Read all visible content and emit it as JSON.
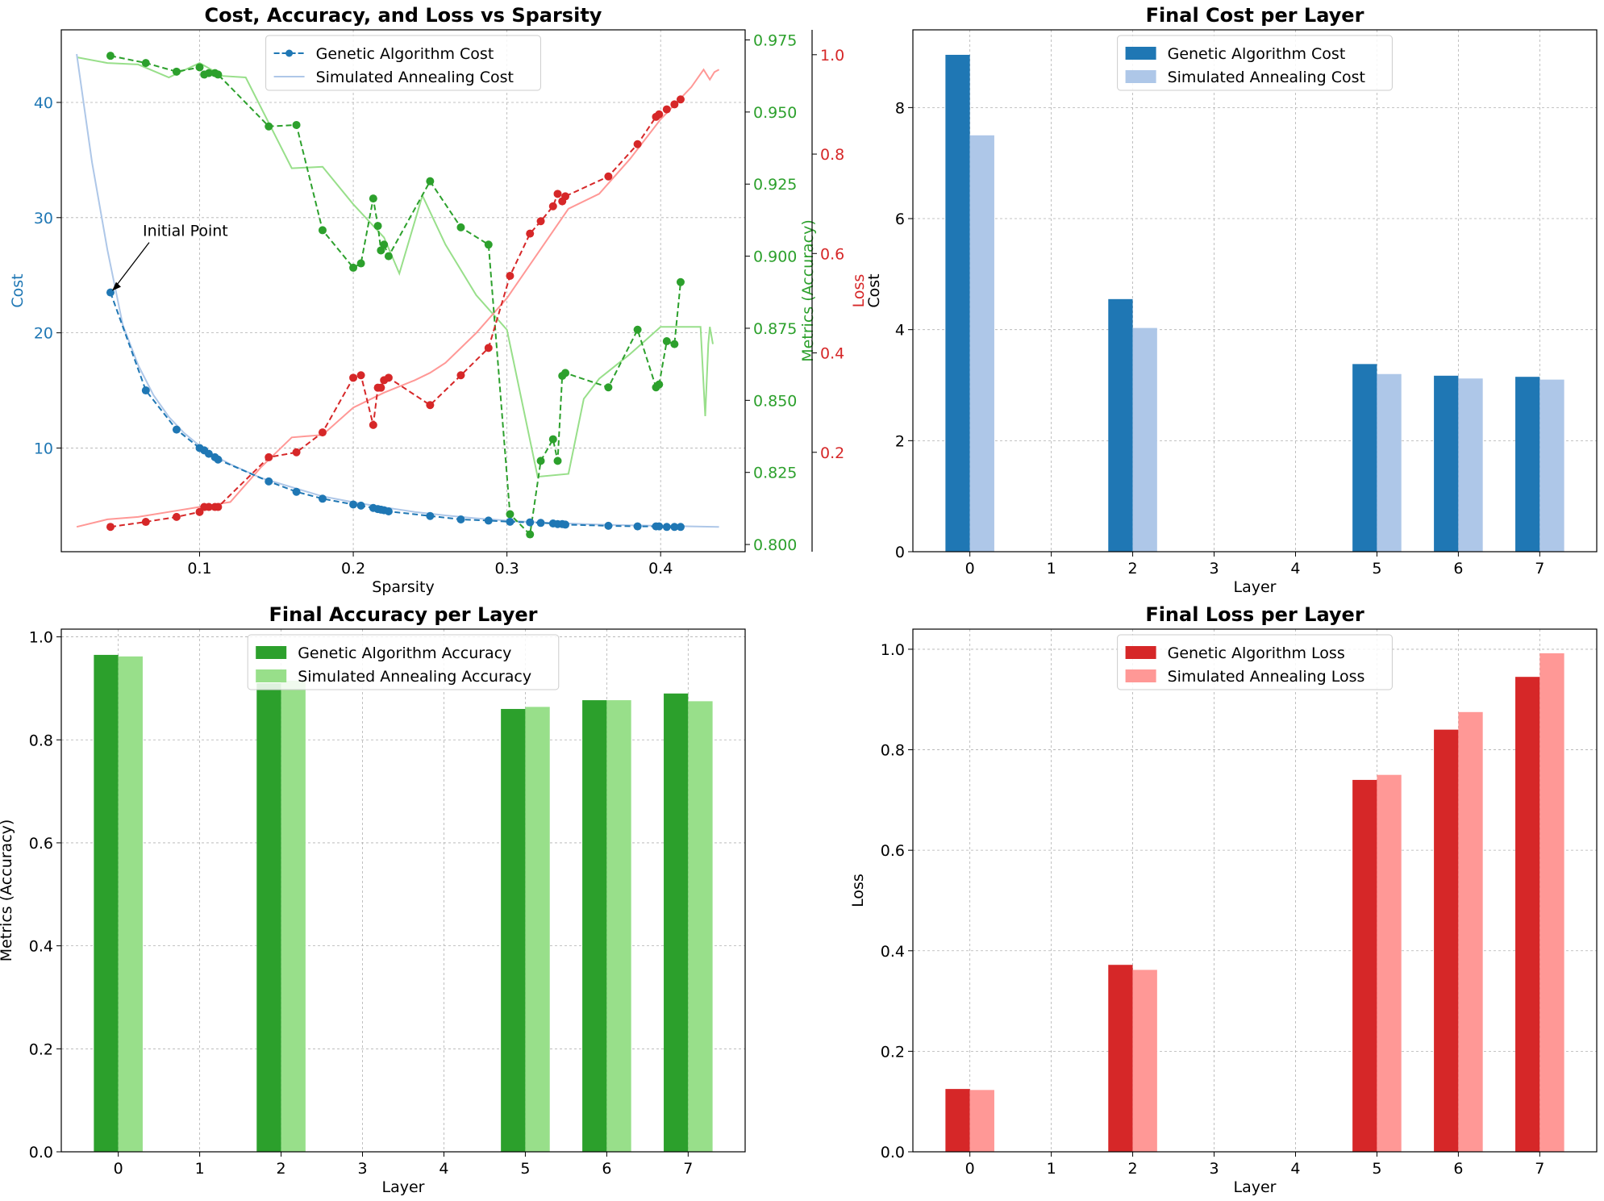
{
  "colors": {
    "ga_cost": "#1f77b4",
    "sa_cost": "#aec7e8",
    "ga_acc": "#2ca02c",
    "sa_acc": "#98df8a",
    "ga_loss": "#d62728",
    "sa_loss": "#ff9896",
    "grid": "#b0b0b0",
    "axis": "#000000"
  },
  "chart_data": [
    {
      "id": "line",
      "type": "line",
      "title": "Cost, Accuracy, and Loss vs Sparsity",
      "xlabel": "Sparsity",
      "xlim": [
        0.01,
        0.455
      ],
      "xticks": [
        0.1,
        0.2,
        0.3,
        0.4
      ],
      "grid": true,
      "legend_position": "top-center",
      "annotation": {
        "text": "Initial Point",
        "x": 0.042,
        "y": 23.5
      },
      "axes": {
        "cost": {
          "label": "Cost",
          "side": "left",
          "ylim": [
            1.0,
            46.3
          ],
          "ticks": [
            10,
            20,
            30,
            40
          ]
        },
        "acc": {
          "label": "Metrics (Accuracy)",
          "side": "right",
          "ylim": [
            0.7975,
            0.9785
          ],
          "ticks": [
            0.8,
            0.825,
            0.85,
            0.875,
            0.9,
            0.925,
            0.95,
            0.975
          ]
        },
        "loss": {
          "label": "Loss",
          "side": "right-offset",
          "ylim": [
            0.0,
            1.05
          ],
          "ticks": [
            0.2,
            0.4,
            0.6,
            0.8,
            1.0
          ]
        }
      },
      "series": [
        {
          "name": "Genetic Algorithm Cost",
          "axis": "cost",
          "style": "dashed-markers",
          "color_key": "ga_cost",
          "in_legend": true,
          "x": [
            0.042,
            0.065,
            0.085,
            0.1,
            0.103,
            0.106,
            0.11,
            0.112,
            0.145,
            0.163,
            0.18,
            0.2,
            0.205,
            0.213,
            0.216,
            0.218,
            0.22,
            0.223,
            0.25,
            0.27,
            0.288,
            0.302,
            0.315,
            0.322,
            0.33,
            0.333,
            0.336,
            0.338,
            0.366,
            0.385,
            0.397,
            0.399,
            0.404,
            0.409,
            0.413
          ],
          "y": [
            23.5,
            15.0,
            11.6,
            10.0,
            9.8,
            9.5,
            9.2,
            9.0,
            7.1,
            6.2,
            5.6,
            5.1,
            5.0,
            4.8,
            4.7,
            4.65,
            4.6,
            4.5,
            4.1,
            3.8,
            3.7,
            3.6,
            3.55,
            3.5,
            3.45,
            3.4,
            3.4,
            3.35,
            3.25,
            3.2,
            3.2,
            3.2,
            3.15,
            3.15,
            3.15
          ]
        },
        {
          "name": "Simulated Annealing Cost",
          "axis": "cost",
          "style": "solid",
          "color_key": "sa_cost",
          "in_legend": true,
          "x": [
            0.02,
            0.03,
            0.04,
            0.05,
            0.06,
            0.07,
            0.08,
            0.09,
            0.1,
            0.11,
            0.12,
            0.14,
            0.16,
            0.18,
            0.2,
            0.22,
            0.24,
            0.26,
            0.28,
            0.3,
            0.32,
            0.34,
            0.36,
            0.38,
            0.4,
            0.42,
            0.438
          ],
          "y": [
            44.2,
            34.8,
            27.2,
            20.7,
            17.2,
            14.6,
            12.7,
            11.3,
            10.2,
            9.3,
            8.6,
            7.4,
            6.6,
            5.8,
            5.3,
            4.85,
            4.45,
            4.15,
            3.9,
            3.7,
            3.55,
            3.45,
            3.35,
            3.3,
            3.25,
            3.2,
            3.15
          ]
        },
        {
          "name": "Genetic Algorithm Accuracy",
          "axis": "acc",
          "style": "dashed-markers",
          "color_key": "ga_acc",
          "in_legend": false,
          "x": [
            0.042,
            0.065,
            0.085,
            0.1,
            0.103,
            0.106,
            0.11,
            0.112,
            0.145,
            0.163,
            0.18,
            0.2,
            0.205,
            0.213,
            0.216,
            0.218,
            0.22,
            0.223,
            0.25,
            0.27,
            0.288,
            0.302,
            0.315,
            0.322,
            0.33,
            0.333,
            0.336,
            0.338,
            0.366,
            0.385,
            0.397,
            0.399,
            0.404,
            0.409,
            0.413
          ],
          "y": [
            0.9695,
            0.967,
            0.964,
            0.9655,
            0.963,
            0.9635,
            0.9635,
            0.963,
            0.945,
            0.9455,
            0.909,
            0.896,
            0.8975,
            0.92,
            0.9105,
            0.902,
            0.904,
            0.9,
            0.926,
            0.91,
            0.904,
            0.8105,
            0.8035,
            0.829,
            0.8365,
            0.829,
            0.8585,
            0.8595,
            0.8545,
            0.8745,
            0.8545,
            0.8555,
            0.8705,
            0.8695,
            0.891
          ]
        },
        {
          "name": "Simulated Annealing Accuracy",
          "axis": "acc",
          "style": "solid",
          "color_key": "sa_acc",
          "in_legend": false,
          "x": [
            0.02,
            0.04,
            0.06,
            0.08,
            0.09,
            0.1,
            0.115,
            0.13,
            0.16,
            0.18,
            0.2,
            0.22,
            0.23,
            0.245,
            0.26,
            0.28,
            0.3,
            0.32,
            0.34,
            0.35,
            0.36,
            0.38,
            0.4,
            0.42,
            0.426,
            0.429,
            0.431,
            0.432,
            0.434
          ],
          "y": [
            0.969,
            0.967,
            0.9665,
            0.962,
            0.9645,
            0.967,
            0.9625,
            0.962,
            0.9305,
            0.931,
            0.918,
            0.9065,
            0.894,
            0.921,
            0.904,
            0.8865,
            0.8745,
            0.8235,
            0.8245,
            0.8505,
            0.8575,
            0.866,
            0.8755,
            0.8755,
            0.8755,
            0.8445,
            0.8695,
            0.8755,
            0.8695
          ]
        },
        {
          "name": "Genetic Algorithm Loss",
          "axis": "loss",
          "style": "dashed-markers",
          "color_key": "ga_loss",
          "in_legend": false,
          "x": [
            0.042,
            0.065,
            0.085,
            0.1,
            0.103,
            0.106,
            0.11,
            0.112,
            0.145,
            0.163,
            0.18,
            0.2,
            0.205,
            0.213,
            0.216,
            0.218,
            0.22,
            0.223,
            0.25,
            0.27,
            0.288,
            0.302,
            0.315,
            0.322,
            0.33,
            0.333,
            0.336,
            0.338,
            0.366,
            0.385,
            0.397,
            0.399,
            0.404,
            0.409,
            0.413
          ],
          "y": [
            0.05,
            0.06,
            0.07,
            0.08,
            0.09,
            0.09,
            0.09,
            0.09,
            0.19,
            0.2,
            0.24,
            0.35,
            0.355,
            0.255,
            0.33,
            0.33,
            0.345,
            0.35,
            0.295,
            0.355,
            0.41,
            0.555,
            0.64,
            0.665,
            0.695,
            0.72,
            0.705,
            0.715,
            0.755,
            0.82,
            0.875,
            0.88,
            0.89,
            0.9,
            0.91
          ]
        },
        {
          "name": "Simulated Annealing Loss",
          "axis": "loss",
          "style": "solid",
          "color_key": "sa_loss",
          "in_legend": false,
          "x": [
            0.02,
            0.04,
            0.06,
            0.08,
            0.1,
            0.12,
            0.14,
            0.16,
            0.18,
            0.2,
            0.22,
            0.24,
            0.25,
            0.26,
            0.28,
            0.3,
            0.32,
            0.34,
            0.36,
            0.38,
            0.4,
            0.42,
            0.428,
            0.432,
            0.435,
            0.438
          ],
          "y": [
            0.05,
            0.065,
            0.07,
            0.08,
            0.09,
            0.1,
            0.17,
            0.23,
            0.235,
            0.29,
            0.32,
            0.345,
            0.36,
            0.38,
            0.44,
            0.51,
            0.6,
            0.69,
            0.72,
            0.79,
            0.87,
            0.935,
            0.97,
            0.95,
            0.965,
            0.97
          ]
        }
      ]
    },
    {
      "id": "cost",
      "type": "bar",
      "title": "Final Cost per Layer",
      "xlabel": "Layer",
      "ylabel": "Cost",
      "categories": [
        "0",
        "1",
        "2",
        "3",
        "4",
        "5",
        "6",
        "7"
      ],
      "ylim": [
        0,
        9.4
      ],
      "yticks": [
        0,
        2,
        4,
        6,
        8
      ],
      "tick_decimals": 0,
      "grid": true,
      "legend_position": "top-center",
      "series": [
        {
          "name": "Genetic Algorithm Cost",
          "color_key": "ga_cost",
          "values": [
            8.95,
            null,
            4.55,
            null,
            null,
            3.38,
            3.17,
            3.15
          ]
        },
        {
          "name": "Simulated Annealing Cost",
          "color_key": "sa_cost",
          "values": [
            7.5,
            null,
            4.03,
            null,
            null,
            3.2,
            3.12,
            3.1
          ]
        }
      ]
    },
    {
      "id": "acc",
      "type": "bar",
      "title": "Final Accuracy per Layer",
      "xlabel": "Layer",
      "ylabel": "Metrics (Accuracy)",
      "categories": [
        "0",
        "1",
        "2",
        "3",
        "4",
        "5",
        "6",
        "7"
      ],
      "ylim": [
        0,
        1.015
      ],
      "yticks": [
        0.0,
        0.2,
        0.4,
        0.6,
        0.8,
        1.0
      ],
      "tick_decimals": 1,
      "grid": true,
      "legend_position": "top-center",
      "series": [
        {
          "name": "Genetic Algorithm Accuracy",
          "color_key": "ga_acc",
          "values": [
            0.965,
            null,
            0.91,
            null,
            null,
            0.86,
            0.877,
            0.89
          ]
        },
        {
          "name": "Simulated Annealing Accuracy",
          "color_key": "sa_acc",
          "values": [
            0.962,
            null,
            0.915,
            null,
            null,
            0.864,
            0.877,
            0.875
          ]
        }
      ]
    },
    {
      "id": "loss",
      "type": "bar",
      "title": "Final Loss per Layer",
      "xlabel": "Layer",
      "ylabel": "Loss",
      "categories": [
        "0",
        "1",
        "2",
        "3",
        "4",
        "5",
        "6",
        "7"
      ],
      "ylim": [
        0,
        1.04
      ],
      "yticks": [
        0.0,
        0.2,
        0.4,
        0.6,
        0.8,
        1.0
      ],
      "tick_decimals": 1,
      "grid": true,
      "legend_position": "top-center",
      "series": [
        {
          "name": "Genetic Algorithm Loss",
          "color_key": "ga_loss",
          "values": [
            0.125,
            null,
            0.372,
            null,
            null,
            0.74,
            0.84,
            0.945
          ]
        },
        {
          "name": "Simulated Annealing Loss",
          "color_key": "sa_loss",
          "values": [
            0.123,
            null,
            0.362,
            null,
            null,
            0.75,
            0.875,
            0.992
          ]
        }
      ]
    }
  ]
}
